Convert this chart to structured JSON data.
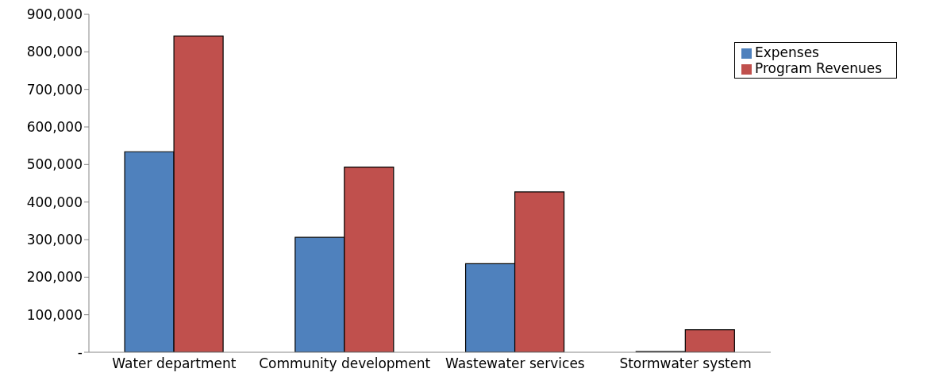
{
  "chart_data": {
    "type": "bar",
    "categories": [
      "Water department",
      "Community development",
      "Wastewater services",
      "Stormwater system"
    ],
    "series": [
      {
        "name": "Expenses",
        "color": "#4f81bd",
        "values": [
          534000,
          306000,
          236000,
          2000
        ]
      },
      {
        "name": "Program Revenues",
        "color": "#c0504d",
        "values": [
          842000,
          493000,
          427000,
          60000
        ]
      }
    ],
    "ylim": [
      0,
      900000
    ],
    "yticks": [
      {
        "value": 0,
        "label": "-"
      },
      {
        "value": 100000,
        "label": "100,000"
      },
      {
        "value": 200000,
        "label": "200,000"
      },
      {
        "value": 300000,
        "label": "300,000"
      },
      {
        "value": 400000,
        "label": "400,000"
      },
      {
        "value": 500000,
        "label": "500,000"
      },
      {
        "value": 600000,
        "label": "600,000"
      },
      {
        "value": 700000,
        "label": "700,000"
      },
      {
        "value": 800000,
        "label": "800,000"
      },
      {
        "value": 900000,
        "label": "900,000"
      }
    ],
    "grid": false,
    "legend": "top right"
  }
}
